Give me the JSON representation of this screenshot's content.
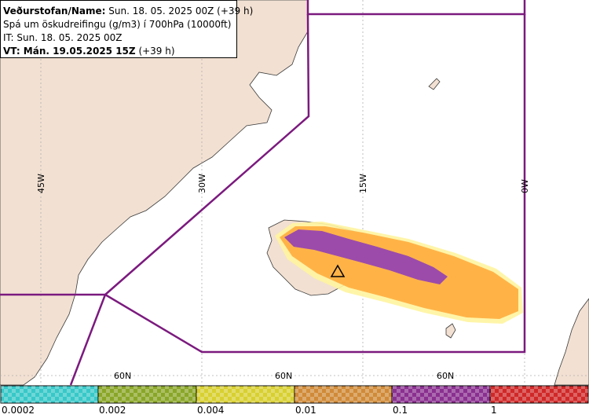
{
  "header": {
    "line1_label": "Veðurstofan/Name:",
    "line1_value": "Sun. 18. 05. 2025 00Z (+39 h)",
    "line2": "Spá um öskudreifingu (g/m3) í 700hPa (10000ft)",
    "line3": "IT: Sun. 18. 05. 2025 00Z",
    "line4_label": "VT: Mán. 19.05.2025 15Z",
    "line4_value": "(+39 h)"
  },
  "map": {
    "longitude_labels": [
      "45W",
      "30W",
      "15W",
      "0W"
    ],
    "latitude_labels": [
      "60N",
      "60N",
      "60N"
    ],
    "marker_icon": "volcano-triangle-icon",
    "colors": {
      "ocean": "#ffffff",
      "land": "#f2e0d2",
      "boundary": "#7b1a7e",
      "grid": "#b0b0b0",
      "plume_outer": "#ffb347",
      "plume_inner": "#9c4bab",
      "plume_fringe": "#fff4a0"
    }
  },
  "legend": {
    "labels": [
      "0.0002",
      "0.002",
      "0.004",
      "0.01",
      "0.1",
      "1"
    ],
    "colors": [
      "#38c8c8",
      "#8aa628",
      "#d8d030",
      "#d08a38",
      "#8a3090",
      "#d02828"
    ]
  }
}
